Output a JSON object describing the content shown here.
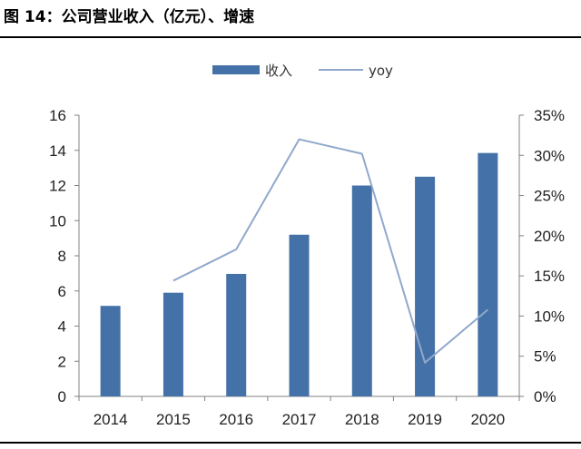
{
  "figure": {
    "title": "图 14：公司营业收入（亿元）、增速"
  },
  "colors": {
    "bar": "#4472a8",
    "line": "#90a8cc",
    "axis": "#808080",
    "rule": "#000000"
  },
  "chart_data": {
    "type": "bar",
    "title": "",
    "categories": [
      "2014",
      "2015",
      "2016",
      "2017",
      "2018",
      "2019",
      "2020"
    ],
    "series": [
      {
        "name": "收入",
        "type": "bar",
        "axis": "left",
        "values": [
          5.15,
          5.9,
          6.97,
          9.2,
          12.0,
          12.5,
          13.85
        ]
      },
      {
        "name": "yoy",
        "type": "line",
        "axis": "right",
        "values": [
          null,
          14.4,
          18.3,
          32.0,
          30.2,
          4.2,
          10.8
        ]
      }
    ],
    "y_left": {
      "min": 0,
      "max": 16,
      "step": 2,
      "tick_labels": [
        "0",
        "2",
        "4",
        "6",
        "8",
        "10",
        "12",
        "14",
        "16"
      ]
    },
    "y_right": {
      "min": 0,
      "max": 35,
      "step": 5,
      "unit": "%",
      "tick_labels": [
        "0%",
        "5%",
        "10%",
        "15%",
        "20%",
        "25%",
        "30%",
        "35%"
      ]
    },
    "legend": {
      "position": "top-center"
    },
    "grid": false
  }
}
